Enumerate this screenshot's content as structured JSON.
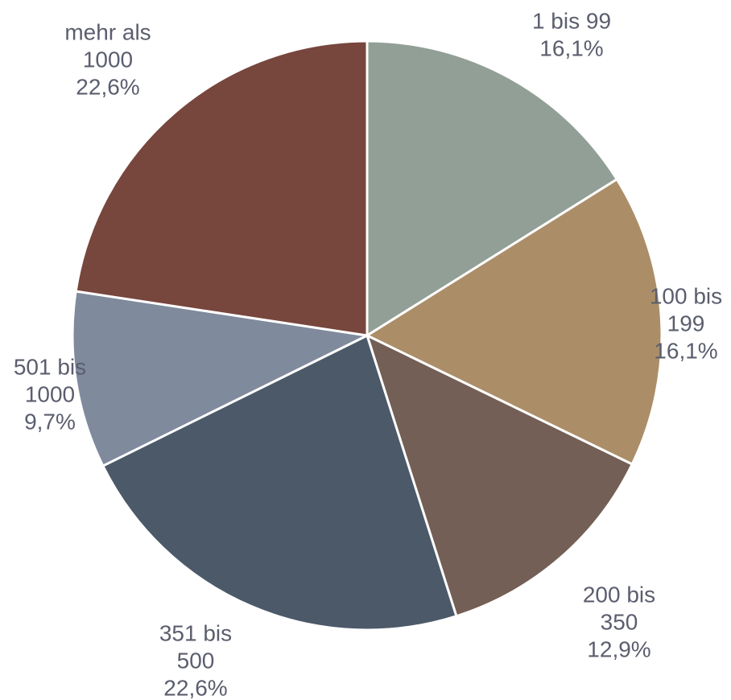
{
  "chart_data": {
    "type": "pie",
    "title": "",
    "start": "top",
    "direction": "clockwise",
    "slices": [
      {
        "lines": [
          "1 bis 99",
          "16,1%"
        ],
        "value": 16.1,
        "color": "#929f96"
      },
      {
        "lines": [
          "100 bis",
          "199",
          "16,1%"
        ],
        "value": 16.1,
        "color": "#ab8e68"
      },
      {
        "lines": [
          "200 bis",
          "350",
          "12,9%"
        ],
        "value": 12.9,
        "color": "#735f55"
      },
      {
        "lines": [
          "351 bis",
          "500",
          "22,6%"
        ],
        "value": 22.6,
        "color": "#4c5969"
      },
      {
        "lines": [
          "501 bis",
          "1000",
          "9,7%"
        ],
        "value": 9.7,
        "color": "#7f8a9d"
      },
      {
        "lines": [
          "mehr als",
          "1000",
          "22,6%"
        ],
        "value": 22.6,
        "color": "#77463d"
      }
    ]
  }
}
